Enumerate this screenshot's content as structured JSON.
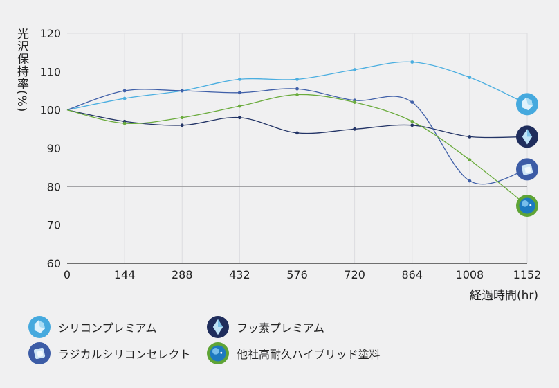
{
  "chart_data": {
    "type": "line",
    "ylabel": "光沢保持率(%)",
    "xlabel": "経過時間(hr)",
    "x": [
      0,
      144,
      288,
      432,
      576,
      720,
      864,
      1008,
      1152
    ],
    "ylim": [
      60,
      120
    ],
    "yticks": [
      60,
      70,
      80,
      90,
      100,
      110,
      120
    ],
    "reference_line": 80,
    "grid": "vertical",
    "legend_position": "bottom",
    "series": [
      {
        "name": "シリコンプレミアム",
        "color": "#4aaee0",
        "icon": "light-crystal-icon",
        "values": [
          100,
          103,
          105,
          108,
          108,
          110.5,
          112.5,
          108.5,
          101.5
        ]
      },
      {
        "name": "フッ素プレミアム",
        "color": "#233466",
        "icon": "dark-diamond-icon",
        "values": [
          100,
          97,
          96,
          98,
          94,
          95,
          96,
          93,
          93
        ]
      },
      {
        "name": "ラジカルシリコンセレクト",
        "color": "#3f5fa8",
        "icon": "ice-cube-icon",
        "values": [
          100,
          105,
          105,
          104.5,
          105.5,
          102.5,
          102,
          81.5,
          84.5
        ]
      },
      {
        "name": "他社高耐久ハイブリッド塗料",
        "color": "#6aab3c",
        "icon": "sphere-icon",
        "values": [
          100,
          96.5,
          98,
          101,
          104,
          102,
          97,
          87,
          75
        ]
      }
    ]
  }
}
